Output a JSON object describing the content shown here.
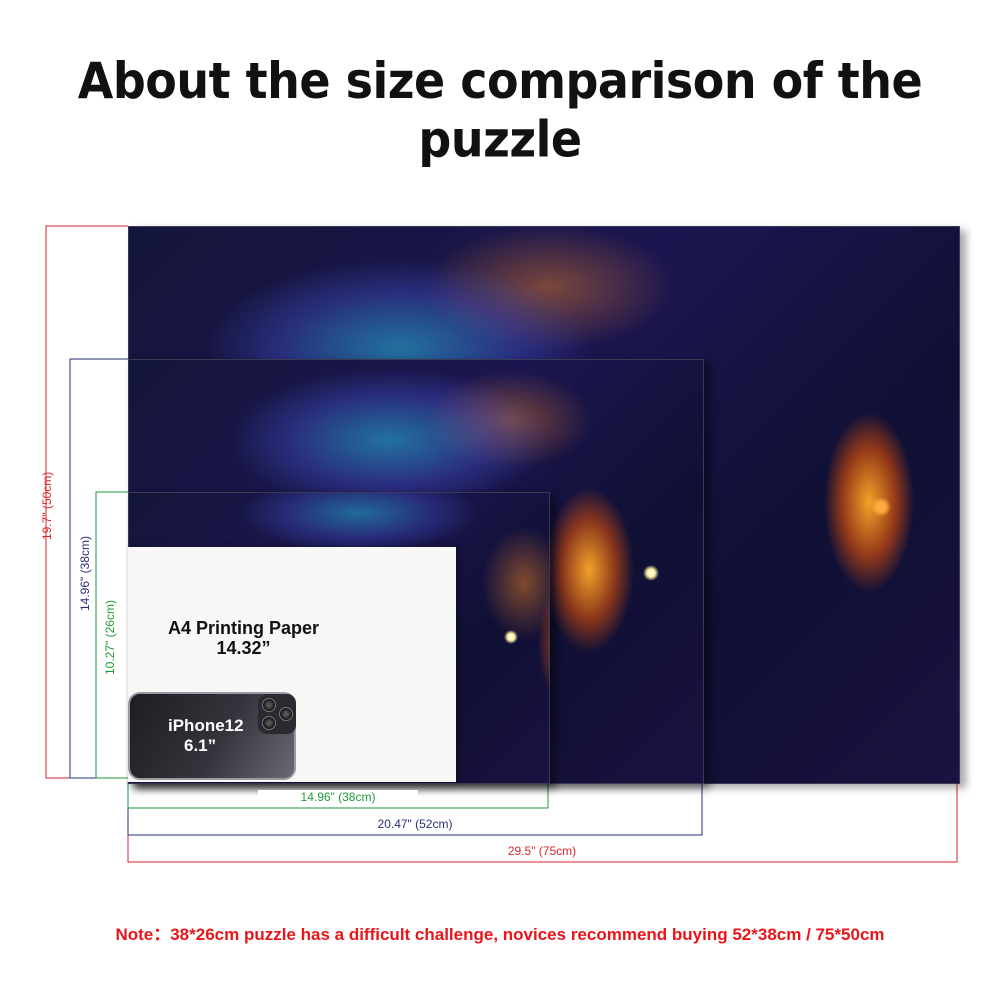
{
  "title": "About the size comparison of the puzzle",
  "puzzles": {
    "large": {
      "height_label": "19.7\" (50cm)",
      "width_label": "29.5\" (75cm)",
      "color": "#d9262c"
    },
    "medium": {
      "height_label": "14.96\" (38cm)",
      "width_label": "20.47\" (52cm)",
      "color": "#2a2f7a"
    },
    "small": {
      "height_label": "10.27\" (26cm)",
      "width_label": "14.96\" (38cm)",
      "color": "#1f9a3a"
    }
  },
  "a4": {
    "line1": "A4 Printing Paper",
    "line2": "14.32”"
  },
  "phone": {
    "line1": "iPhone12",
    "line2": "6.1”"
  },
  "note": "Note：38*26cm puzzle has a difficult challenge, novices recommend buying 52*38cm / 75*50cm"
}
